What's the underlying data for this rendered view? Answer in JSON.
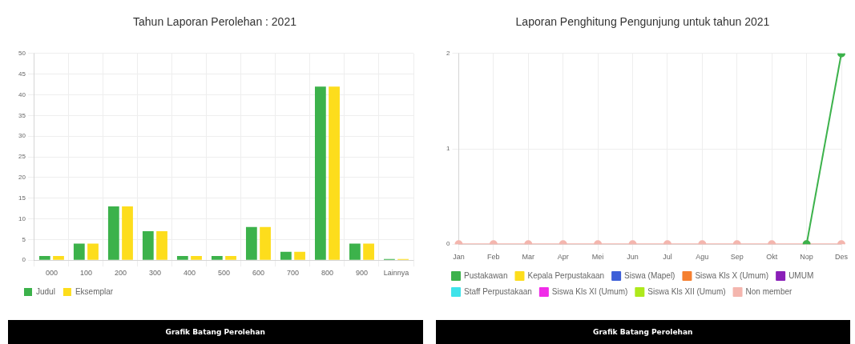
{
  "chart_data": [
    {
      "type": "bar",
      "title": "Tahun Laporan Perolehan : 2021",
      "categories": [
        "000",
        "100",
        "200",
        "300",
        "400",
        "500",
        "600",
        "700",
        "800",
        "900",
        "Lainnya"
      ],
      "series": [
        {
          "name": "Judul",
          "color": "#3cb24b",
          "values": [
            1,
            4,
            13,
            7,
            1,
            1,
            8,
            2,
            42,
            4,
            0.3
          ]
        },
        {
          "name": "Eksemplar",
          "color": "#fddd1c",
          "values": [
            1,
            4,
            13,
            7,
            1,
            1,
            8,
            2,
            42,
            4,
            0.3
          ]
        }
      ],
      "ylim": [
        0,
        50
      ],
      "yticks": [
        0,
        5,
        10,
        15,
        20,
        25,
        30,
        35,
        40,
        45,
        50
      ],
      "grid": true,
      "legend": "bottom left",
      "annotations": [
        "Grafik Batang Perolehan"
      ]
    },
    {
      "type": "line",
      "title": "Laporan Penghitung Pengunjung untuk tahun 2021",
      "categories": [
        "Jan",
        "Feb",
        "Mar",
        "Apr",
        "Mei",
        "Jun",
        "Jul",
        "Agu",
        "Sep",
        "Okt",
        "Nop",
        "Des"
      ],
      "series": [
        {
          "name": "Pustakawan",
          "color": "#3cb24b",
          "values": [
            null,
            null,
            null,
            null,
            null,
            null,
            null,
            null,
            null,
            null,
            0,
            2
          ]
        },
        {
          "name": "Kepala Perpustakaan",
          "color": "#fddd1c",
          "values": [
            null,
            null,
            null,
            null,
            null,
            null,
            null,
            null,
            null,
            null,
            null,
            null
          ]
        },
        {
          "name": "Siswa (Mapel)",
          "color": "#3d5fd8",
          "values": [
            null,
            null,
            null,
            null,
            null,
            null,
            null,
            null,
            null,
            null,
            null,
            null
          ]
        },
        {
          "name": "Siswa Kls X (Umum)",
          "color": "#f57f2f",
          "values": [
            null,
            null,
            null,
            null,
            null,
            null,
            null,
            null,
            null,
            null,
            null,
            null
          ]
        },
        {
          "name": "UMUM",
          "color": "#8a1fb8",
          "values": [
            null,
            null,
            null,
            null,
            null,
            null,
            null,
            null,
            null,
            null,
            null,
            null
          ]
        },
        {
          "name": "Staff Perpustakaan",
          "color": "#3ee3ea",
          "values": [
            null,
            null,
            null,
            null,
            null,
            null,
            null,
            null,
            null,
            null,
            null,
            null
          ]
        },
        {
          "name": "Siswa Kls XI (Umum)",
          "color": "#f02ce8",
          "values": [
            null,
            null,
            null,
            null,
            null,
            null,
            null,
            null,
            null,
            null,
            null,
            null
          ]
        },
        {
          "name": "Siswa Kls XII (Umum)",
          "color": "#aee91c",
          "values": [
            null,
            null,
            null,
            null,
            null,
            null,
            null,
            null,
            null,
            null,
            null,
            null
          ]
        },
        {
          "name": "Non member",
          "color": "#f4b6ae",
          "values": [
            0,
            0,
            0,
            0,
            0,
            0,
            0,
            0,
            0,
            0,
            0,
            0
          ]
        }
      ],
      "ylim": [
        0,
        2
      ],
      "yticks": [
        0,
        1,
        2
      ],
      "grid": true,
      "legend": "bottom left",
      "marker": "circle",
      "line_style": "solid",
      "annotations": [
        "Grafik Batang Perolehan"
      ]
    }
  ]
}
